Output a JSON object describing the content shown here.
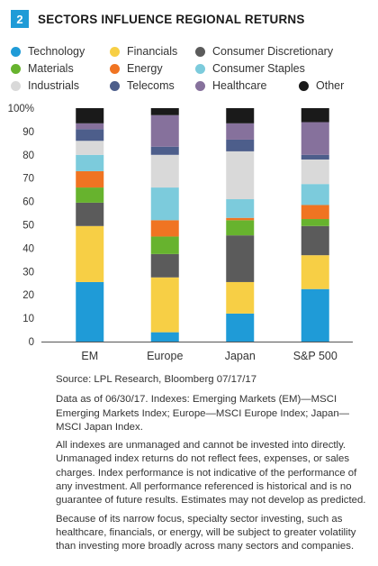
{
  "figure": {
    "number": "2",
    "title": "SECTORS INFLUENCE REGIONAL RETURNS"
  },
  "legend": [
    {
      "name": "Technology",
      "color": "#1f9bd7"
    },
    {
      "name": "Financials",
      "color": "#f7cf45"
    },
    {
      "name": "Consumer Discretionary",
      "color": "#5b5b5b"
    },
    {
      "name": "Materials",
      "color": "#67b32e"
    },
    {
      "name": "Energy",
      "color": "#f07422"
    },
    {
      "name": "Consumer Staples",
      "color": "#7ccbdc"
    },
    {
      "name": "Industrials",
      "color": "#d9d9d9"
    },
    {
      "name": "Telecoms",
      "color": "#4d5e8b"
    },
    {
      "name": "Healthcare",
      "color": "#86719c"
    },
    {
      "name": "Other",
      "color": "#1a1a1a"
    }
  ],
  "chart_data": {
    "type": "bar",
    "stacked": true,
    "categories": [
      "EM",
      "Europe",
      "Japan",
      "S&P 500"
    ],
    "yticks": [
      "0",
      "10",
      "20",
      "30",
      "40",
      "50",
      "60",
      "70",
      "80",
      "90",
      "100%"
    ],
    "ylim": [
      0,
      100
    ],
    "grid": false,
    "legend_position": "top",
    "series": [
      {
        "name": "Technology",
        "color": "#1f9bd7",
        "values": [
          25.5,
          4,
          12,
          22.5
        ]
      },
      {
        "name": "Financials",
        "color": "#f7cf45",
        "values": [
          24,
          23.5,
          13.5,
          14.5
        ]
      },
      {
        "name": "Consumer Discretionary",
        "color": "#5b5b5b",
        "values": [
          10,
          10,
          20,
          12.5
        ]
      },
      {
        "name": "Materials",
        "color": "#67b32e",
        "values": [
          6.5,
          7.5,
          6.5,
          3
        ]
      },
      {
        "name": "Energy",
        "color": "#f07422",
        "values": [
          7,
          7,
          1,
          6
        ]
      },
      {
        "name": "Consumer Staples",
        "color": "#7ccbdc",
        "values": [
          7,
          14,
          8,
          9
        ]
      },
      {
        "name": "Industrials",
        "color": "#d9d9d9",
        "values": [
          6,
          14,
          20.5,
          10.5
        ]
      },
      {
        "name": "Telecoms",
        "color": "#4d5e8b",
        "values": [
          5,
          3.5,
          5,
          2
        ]
      },
      {
        "name": "Healthcare",
        "color": "#86719c",
        "values": [
          2.5,
          13.5,
          7,
          14
        ]
      },
      {
        "name": "Other",
        "color": "#1a1a1a",
        "values": [
          6.5,
          3,
          6.5,
          6
        ]
      }
    ]
  },
  "notes": {
    "source": "Source: LPL Research, Bloomberg   07/17/17",
    "data_as_of": "Data as of 06/30/17. Indexes: Emerging Markets (EM)—MSCI Emerging Markets Index; Europe—MSCI Europe Index; Japan—MSCI Japan Index.",
    "disclaimer": "All indexes are unmanaged and cannot be invested into directly. Unmanaged index returns do not reflect fees, expenses, or sales charges. Index performance is not indicative of the performance of any investment. All performance referenced is historical and is no guarantee of future results. Estimates may not develop as predicted.",
    "sector_risk": "Because of its narrow focus, specialty sector investing, such as healthcare, financials, or energy, will be subject to greater volatility than investing more broadly across many sectors and companies."
  }
}
